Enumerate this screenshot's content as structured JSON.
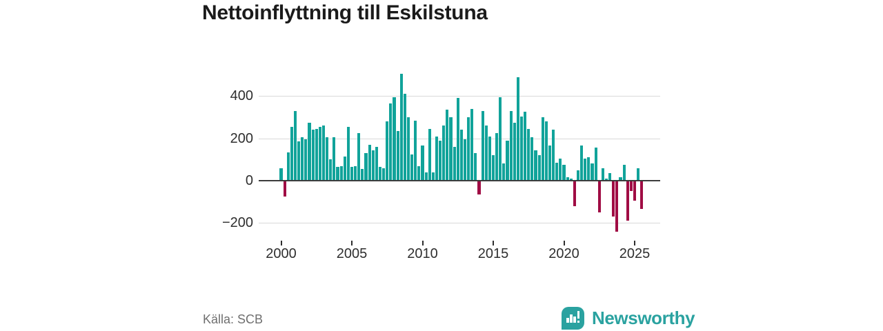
{
  "title": "Nettoinflyttning till Eskilstuna",
  "source": "Källa: SCB",
  "branding": {
    "logo_text": "Newsworthy",
    "logo_icon": "bar-chart-speech-bubble-icon",
    "brand_color": "#2aa2a0"
  },
  "colors": {
    "positive_bar": "#11a39a",
    "negative_bar": "#a00c44",
    "gridline": "#d9d9d9",
    "zero_line": "#3c3c3c",
    "title_text": "#1b1b1b",
    "axis_text": "#2e2e2e",
    "source_text": "#6f6f6f"
  },
  "chart_data": {
    "type": "bar",
    "title": "Nettoinflyttning till Eskilstuna",
    "frequency": "quarterly",
    "start_period": "2000-Q1",
    "end_period": "2025-Q3",
    "xlabel": "",
    "ylabel": "",
    "ylim": [
      -270,
      520
    ],
    "grid": "horizontal",
    "y_ticks": [
      400,
      200,
      0,
      -200
    ],
    "y_tick_labels": [
      "400",
      "200",
      "0",
      "−200"
    ],
    "x_tick_years": [
      2000,
      2005,
      2010,
      2015,
      2020,
      2025
    ],
    "x_tick_labels": [
      "2000",
      "2005",
      "2010",
      "2015",
      "2020",
      "2025"
    ],
    "values": [
      60,
      -75,
      135,
      255,
      330,
      185,
      205,
      195,
      275,
      240,
      245,
      255,
      260,
      205,
      100,
      205,
      65,
      70,
      115,
      255,
      65,
      70,
      225,
      55,
      130,
      170,
      145,
      160,
      65,
      60,
      280,
      365,
      395,
      235,
      505,
      410,
      300,
      125,
      285,
      70,
      165,
      40,
      245,
      40,
      210,
      190,
      260,
      335,
      300,
      160,
      390,
      240,
      195,
      300,
      340,
      130,
      -65,
      330,
      260,
      210,
      120,
      225,
      395,
      80,
      190,
      330,
      275,
      490,
      305,
      325,
      245,
      205,
      145,
      120,
      300,
      280,
      165,
      240,
      85,
      105,
      75,
      15,
      10,
      -120,
      50,
      165,
      105,
      110,
      80,
      155,
      -150,
      60,
      10,
      35,
      -170,
      -240,
      15,
      75,
      -190,
      -50,
      -95,
      60,
      -135
    ]
  }
}
